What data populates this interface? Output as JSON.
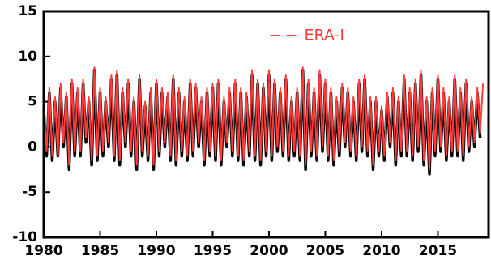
{
  "chart_data": {
    "type": "line",
    "x": [
      1980,
      1980.25,
      1980.5,
      1980.75,
      1981,
      1981.25,
      1981.5,
      1981.75,
      1982,
      1982.25,
      1982.5,
      1982.75,
      1983,
      1983.25,
      1983.5,
      1983.75,
      1984,
      1984.25,
      1984.5,
      1984.75,
      1985,
      1985.25,
      1985.5,
      1985.75,
      1986,
      1986.25,
      1986.5,
      1986.75,
      1987,
      1987.25,
      1987.5,
      1987.75,
      1988,
      1988.25,
      1988.5,
      1988.75,
      1989,
      1989.25,
      1989.5,
      1989.75,
      1990,
      1990.25,
      1990.5,
      1990.75,
      1991,
      1991.25,
      1991.5,
      1991.75,
      1992,
      1992.25,
      1992.5,
      1992.75,
      1993,
      1993.25,
      1993.5,
      1993.75,
      1994,
      1994.25,
      1994.5,
      1994.75,
      1995,
      1995.25,
      1995.5,
      1995.75,
      1996,
      1996.25,
      1996.5,
      1996.75,
      1997,
      1997.25,
      1997.5,
      1997.75,
      1998,
      1998.25,
      1998.5,
      1998.75,
      1999,
      1999.25,
      1999.5,
      1999.75,
      2000,
      2000.25,
      2000.5,
      2000.75,
      2001,
      2001.25,
      2001.5,
      2001.75,
      2002,
      2002.25,
      2002.5,
      2002.75,
      2003,
      2003.25,
      2003.5,
      2003.75,
      2004,
      2004.25,
      2004.5,
      2004.75,
      2005,
      2005.25,
      2005.5,
      2005.75,
      2006,
      2006.25,
      2006.5,
      2006.75,
      2007,
      2007.25,
      2007.5,
      2007.75,
      2008,
      2008.25,
      2008.5,
      2008.75,
      2009,
      2009.25,
      2009.5,
      2009.75,
      2010,
      2010.25,
      2010.5,
      2010.75,
      2011,
      2011.25,
      2011.5,
      2011.75,
      2012,
      2012.25,
      2012.5,
      2012.75,
      2013,
      2013.25,
      2013.5,
      2013.75,
      2014,
      2014.25,
      2014.5,
      2014.75,
      2015,
      2015.25,
      2015.5,
      2015.75,
      2016,
      2016.25,
      2016.5,
      2016.75,
      2017,
      2017.25,
      2017.5,
      2017.75,
      2018,
      2018.25,
      2018.5,
      2018.75,
      2019
    ],
    "series": [
      {
        "color": "#000000",
        "dash": false,
        "values": [
          4,
          -1,
          6,
          -1.5,
          5,
          -1,
          6.5,
          0,
          5.5,
          -2.5,
          7,
          -1,
          6,
          -1,
          7,
          0.5,
          5,
          -2,
          8.5,
          -1.5,
          6,
          -1,
          5,
          0,
          7.5,
          -1.5,
          8,
          -2,
          6,
          0,
          7,
          -1,
          5,
          -2.5,
          7.5,
          -1,
          4.5,
          -1.5,
          6,
          -2.5,
          7,
          -1,
          6,
          0,
          5.5,
          -1.5,
          7.5,
          -2,
          6,
          -1,
          5,
          -1.5,
          7,
          -1,
          6.5,
          0,
          5,
          -2,
          6,
          -1,
          6.5,
          -1.5,
          7,
          -2,
          5,
          0,
          6,
          -1,
          7,
          -1.5,
          6,
          -2,
          5.5,
          -1,
          8,
          -1.5,
          7,
          -2,
          6.5,
          -1,
          8,
          -1.5,
          7,
          -0.5,
          6,
          -1,
          7.5,
          -1.5,
          5,
          -1,
          6,
          -1.5,
          8.5,
          -2.5,
          7,
          -1,
          6,
          -1.5,
          8,
          -0.5,
          7,
          -1.5,
          6,
          -2,
          5,
          -1,
          6.5,
          0,
          6,
          -1,
          5,
          -1.5,
          7,
          -0.5,
          7.5,
          -1,
          5,
          -2.5,
          5,
          -1,
          4,
          -1.5,
          5.5,
          0,
          6,
          -2,
          5,
          -1,
          7.5,
          -1,
          6,
          -1.5,
          7,
          -0.5,
          8,
          -2,
          5,
          -3,
          6,
          -1,
          7.5,
          -0.5,
          6,
          -1.5,
          5,
          -1,
          7.5,
          -1,
          6,
          -1.5,
          7,
          -0.5,
          5,
          0,
          6,
          1,
          null
        ]
      },
      {
        "name": "ERA-I",
        "color": "#ff3b3b",
        "dash": true,
        "values": [
          5,
          -0.5,
          6.5,
          -1,
          5.5,
          -1,
          7,
          0.5,
          6,
          -2,
          7.5,
          -0.5,
          6.5,
          -0.5,
          7.5,
          1,
          5.5,
          -1.5,
          8.8,
          -1,
          6.5,
          -0.5,
          5.5,
          0.5,
          8,
          -1,
          8.5,
          -1.5,
          6.5,
          0.5,
          7.5,
          -0.5,
          5.5,
          -2,
          8,
          -0.5,
          5,
          -1,
          6.5,
          -2,
          7.5,
          -0.5,
          6.5,
          0.5,
          6,
          -1,
          8,
          -1.5,
          6.5,
          -0.5,
          5.5,
          -1,
          7.5,
          -0.5,
          7,
          0.5,
          5.5,
          -1.5,
          6.5,
          -0.5,
          7,
          -1,
          7.5,
          -1.5,
          5.5,
          0.5,
          6.5,
          -0.5,
          7.5,
          -1,
          6.5,
          -1.5,
          6,
          -0.5,
          8.5,
          -1,
          7.5,
          -1.5,
          7,
          -0.5,
          8.5,
          -1,
          7.5,
          0,
          6.5,
          -0.5,
          8,
          -1,
          5.5,
          -0.5,
          6.5,
          -1,
          8.8,
          -2,
          7.5,
          -0.5,
          6.5,
          -1,
          8.5,
          0,
          7.5,
          -1,
          6.5,
          -1.5,
          5.5,
          -0.5,
          7,
          0.5,
          6.5,
          -0.5,
          5.5,
          -1,
          7.5,
          0,
          8,
          -0.5,
          5.5,
          -2,
          5.5,
          -0.5,
          4.5,
          -1,
          6,
          0.5,
          6.5,
          -1.5,
          5.5,
          -0.5,
          8,
          -0.5,
          6.5,
          -1,
          7.5,
          0,
          8.5,
          -1.5,
          5.5,
          -2.5,
          6.5,
          -0.5,
          8,
          0,
          6.5,
          -1,
          5.5,
          -0.5,
          8,
          -0.5,
          6.5,
          -1,
          7.5,
          0,
          5.5,
          0.5,
          6.5,
          1.5,
          7
        ]
      }
    ],
    "legend": "upper center",
    "xlim": [
      1980,
      2019.5
    ],
    "xticks": [
      1980,
      1985,
      1990,
      1995,
      2000,
      2005,
      2010,
      2015
    ],
    "ylim": [
      -10,
      15
    ],
    "yticks": [
      -10,
      -5,
      0,
      5,
      10,
      15
    ]
  }
}
